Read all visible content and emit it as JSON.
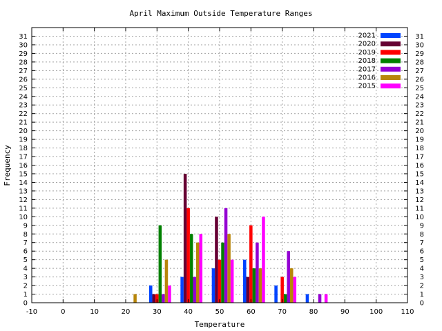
{
  "chart_data": {
    "type": "bar",
    "title": "April Maximum Outside Temperature Ranges",
    "xlabel": "Temperature",
    "ylabel": "Frequency",
    "xlim": [
      -10,
      110
    ],
    "ylim": [
      0,
      32
    ],
    "x_ticks": [
      -10,
      0,
      10,
      20,
      30,
      40,
      50,
      60,
      70,
      80,
      90,
      100,
      110
    ],
    "y_ticks": [
      0,
      1,
      2,
      3,
      4,
      5,
      6,
      7,
      8,
      9,
      10,
      11,
      12,
      13,
      14,
      15,
      16,
      17,
      18,
      19,
      20,
      21,
      22,
      23,
      24,
      25,
      26,
      27,
      28,
      29,
      30,
      31
    ],
    "y2_ticks": [
      0,
      1,
      2,
      3,
      4,
      5,
      6,
      7,
      8,
      9,
      10,
      11,
      12,
      13,
      14,
      15,
      16,
      17,
      18,
      19,
      20,
      21,
      22,
      23,
      24,
      25,
      26,
      27,
      28,
      29,
      30,
      31
    ],
    "grid": true,
    "legend_position": "top-right",
    "bin_centers": [
      30,
      40,
      50,
      60,
      70,
      80,
      20
    ],
    "series": [
      {
        "name": "2021",
        "color": "#0044ff",
        "bins": [
          [
            28,
            2
          ],
          [
            38,
            3
          ],
          [
            48,
            4
          ],
          [
            58,
            5
          ],
          [
            68,
            2
          ],
          [
            78,
            1
          ]
        ]
      },
      {
        "name": "2020",
        "color": "#660033",
        "bins": [
          [
            29,
            1
          ],
          [
            39,
            15
          ],
          [
            49,
            10
          ],
          [
            59,
            3
          ]
        ]
      },
      {
        "name": "2019",
        "color": "#ff0000",
        "bins": [
          [
            30,
            1
          ],
          [
            40,
            11
          ],
          [
            50,
            5
          ],
          [
            60,
            9
          ],
          [
            70,
            3
          ]
        ]
      },
      {
        "name": "2018",
        "color": "#008000",
        "bins": [
          [
            31,
            9
          ],
          [
            41,
            8
          ],
          [
            51,
            7
          ],
          [
            61,
            4
          ],
          [
            71,
            1
          ]
        ]
      },
      {
        "name": "2017",
        "color": "#9400d3",
        "bins": [
          [
            32,
            1
          ],
          [
            42,
            3
          ],
          [
            52,
            11
          ],
          [
            62,
            7
          ],
          [
            72,
            6
          ],
          [
            82,
            1
          ]
        ]
      },
      {
        "name": "2016",
        "color": "#b8860b",
        "bins": [
          [
            23,
            1
          ],
          [
            33,
            5
          ],
          [
            43,
            7
          ],
          [
            53,
            8
          ],
          [
            63,
            4
          ],
          [
            73,
            4
          ]
        ]
      },
      {
        "name": "2015",
        "color": "#ff00ff",
        "bins": [
          [
            34,
            2
          ],
          [
            44,
            8
          ],
          [
            54,
            5
          ],
          [
            64,
            10
          ],
          [
            74,
            3
          ],
          [
            84,
            1
          ]
        ]
      }
    ]
  }
}
